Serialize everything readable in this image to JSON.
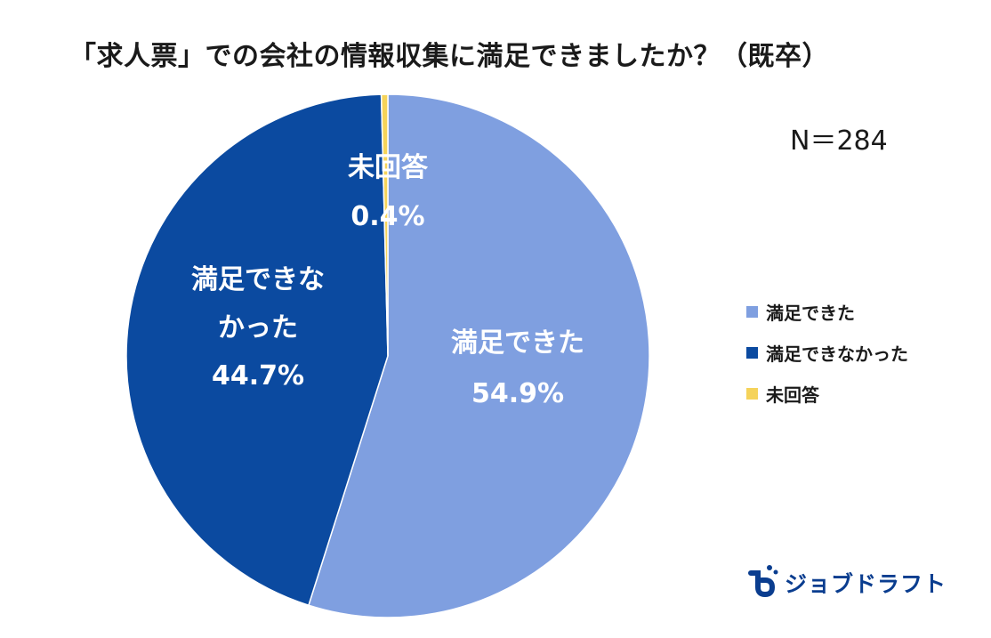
{
  "title": "「求人票」での会社の情報収集に満足できましたか？（既卒）",
  "sample_size": "N＝284",
  "chart_data": {
    "type": "pie",
    "title": "「求人票」での会社の情報収集に満足できましたか？（既卒）",
    "slices": [
      {
        "label": "満足できた",
        "label_lines": [
          "満足できた"
        ],
        "value": 54.9,
        "value_text": "54.9%",
        "color": "#7f9fe0"
      },
      {
        "label": "満足できなかった",
        "label_lines": [
          "満足できな",
          "かった"
        ],
        "value": 44.7,
        "value_text": "44.7%",
        "color": "#0b4aa0"
      },
      {
        "label": "未回答",
        "label_lines": [
          "未回答"
        ],
        "value": 0.4,
        "value_text": "0.4%",
        "color": "#f5d35a"
      }
    ],
    "legend": {
      "placement": "right",
      "entries": [
        "満足できた",
        "満足できなかった",
        "未回答"
      ]
    },
    "start_angle": "12 o'clock",
    "direction": "clockwise"
  },
  "logo": {
    "text": "ジョブドラフト",
    "color": "#0a3d8f"
  }
}
